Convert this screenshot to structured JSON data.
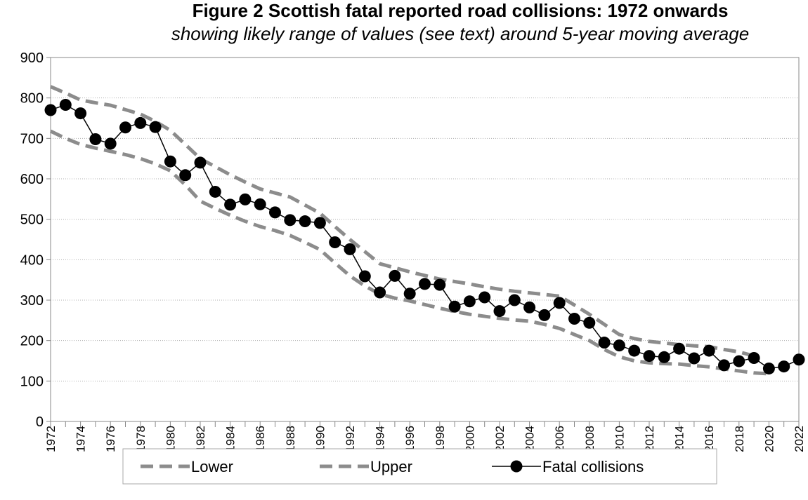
{
  "chart_data": {
    "type": "line",
    "title": "Figure 2 Scottish fatal reported road collisions: 1972 onwards",
    "subtitle": "showing likely range of values (see text) around 5-year moving average",
    "categories": [
      "1972",
      null,
      "1974",
      null,
      "1976",
      null,
      "1978",
      null,
      "1980",
      null,
      "1982",
      null,
      "1984",
      null,
      "1986",
      null,
      "1988",
      null,
      "1990",
      null,
      "1992",
      null,
      "1994",
      null,
      "1996",
      null,
      "1998",
      null,
      "2000",
      null,
      "2002",
      null,
      "2004",
      null,
      "2006",
      null,
      "2008",
      null,
      "2010",
      null,
      "2012",
      null,
      "2014",
      null,
      "2016",
      null,
      "2018",
      null,
      "2020",
      null,
      "2022"
    ],
    "series": [
      {
        "name": "Lower",
        "color": "#8c8c8c",
        "dashed": true,
        "values": [
          718,
          700,
          685,
          676,
          668,
          660,
          650,
          637,
          620,
          585,
          545,
          527,
          510,
          495,
          482,
          472,
          460,
          443,
          425,
          392,
          360,
          335,
          315,
          305,
          298,
          289,
          280,
          272,
          265,
          260,
          255,
          251,
          248,
          240,
          230,
          215,
          200,
          178,
          160,
          150,
          145,
          143,
          142,
          138,
          135,
          130,
          125,
          120,
          118,
          null,
          null
        ]
      },
      {
        "name": "Upper",
        "color": "#8c8c8c",
        "dashed": true,
        "values": [
          828,
          812,
          795,
          788,
          782,
          771,
          760,
          742,
          720,
          685,
          650,
          630,
          610,
          592,
          575,
          565,
          555,
          535,
          515,
          482,
          450,
          420,
          390,
          380,
          370,
          361,
          352,
          346,
          340,
          333,
          327,
          322,
          318,
          314,
          310,
          288,
          265,
          240,
          215,
          205,
          198,
          194,
          190,
          187,
          185,
          178,
          172,
          162,
          null,
          null,
          null
        ]
      },
      {
        "name": "Fatal collisions",
        "color": "#000000",
        "markers": true,
        "values": [
          770,
          783,
          762,
          698,
          687,
          727,
          738,
          728,
          643,
          609,
          640,
          568,
          536,
          549,
          537,
          517,
          498,
          495,
          491,
          443,
          426,
          359,
          319,
          360,
          316,
          340,
          338,
          284,
          297,
          307,
          273,
          300,
          282,
          263,
          293,
          254,
          244,
          195,
          188,
          175,
          162,
          159,
          180,
          156,
          175,
          139,
          149,
          157,
          131,
          136,
          153
        ]
      }
    ],
    "ylim": [
      0,
      900
    ],
    "yticks": [
      0,
      100,
      200,
      300,
      400,
      500,
      600,
      700,
      800,
      900
    ],
    "grid": true,
    "legend": "bottom"
  }
}
